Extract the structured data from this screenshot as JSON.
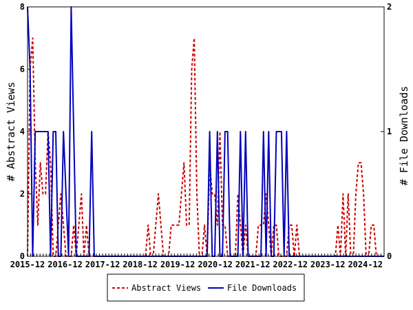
{
  "chart_data": {
    "type": "line",
    "xlabels": [
      "2015-12",
      "2016-12",
      "2017-12",
      "2018-12",
      "2019-12",
      "2020-12",
      "2021-12",
      "2022-12",
      "2023-12",
      "2024-12"
    ],
    "left_axis": {
      "label": "# Abstract Views",
      "ylim": [
        0,
        8
      ],
      "ticks": [
        "0",
        "2",
        "4",
        "6",
        "8"
      ]
    },
    "right_axis": {
      "label": "# File Downloads",
      "ylim": [
        0,
        2
      ],
      "ticks": [
        "0",
        "1",
        "2"
      ]
    },
    "x_range": [
      0,
      114
    ],
    "series": [
      {
        "name": "Abstract Views",
        "axis": "left",
        "color": "#cc0000",
        "dash": true,
        "values": [
          0,
          6,
          7,
          3,
          1,
          3,
          2,
          2,
          4,
          3,
          0,
          0,
          1,
          2,
          1,
          0,
          0,
          0,
          1,
          0,
          1,
          2,
          0,
          1,
          0,
          0,
          0,
          0,
          0,
          0,
          0,
          0,
          0,
          0,
          0,
          0,
          0,
          0,
          0,
          0,
          0,
          0,
          0,
          0,
          0,
          0,
          0,
          1,
          0,
          0,
          1,
          2,
          1,
          0,
          0,
          0,
          1,
          1,
          1,
          1,
          2,
          3,
          1,
          1,
          6,
          7,
          2,
          0,
          0,
          1,
          0,
          3,
          2,
          2,
          1,
          4,
          1,
          1,
          0,
          0,
          0,
          0,
          2,
          1,
          0,
          1,
          0,
          0,
          0,
          0,
          1,
          1,
          1,
          2,
          1,
          0,
          1,
          1,
          0,
          0,
          0,
          0,
          1,
          1,
          0,
          1,
          0,
          0,
          0,
          0,
          0,
          0,
          0,
          0,
          0,
          0,
          0,
          0,
          0,
          0,
          0,
          1,
          0,
          2,
          0,
          2,
          0,
          0,
          2,
          3,
          3,
          2,
          0,
          0,
          1,
          1,
          0,
          0,
          0,
          0
        ]
      },
      {
        "name": "File Downloads",
        "axis": "right",
        "color": "#0000bb",
        "dash": false,
        "values": [
          2,
          1.5,
          0,
          1,
          1,
          1,
          1,
          1,
          1,
          0,
          1,
          1,
          0,
          0,
          1,
          0.5,
          0,
          2,
          1,
          0,
          0,
          0,
          0,
          0,
          0,
          1,
          0,
          0,
          0,
          0,
          0,
          0,
          0,
          0,
          0,
          0,
          0,
          0,
          0,
          0,
          0,
          0,
          0,
          0,
          0,
          0,
          0,
          0,
          0,
          0,
          0,
          0,
          0,
          0,
          0,
          0,
          0,
          0,
          0,
          0,
          0,
          0,
          0,
          0,
          0,
          0,
          0,
          0,
          0,
          0,
          0,
          1,
          0,
          0,
          1,
          0,
          0,
          1,
          1,
          0,
          0,
          0,
          0,
          1,
          0,
          1,
          0,
          0,
          0,
          0,
          0,
          0,
          1,
          0,
          1,
          0,
          0,
          1,
          1,
          1,
          0,
          1,
          0,
          0,
          0,
          0,
          0,
          0,
          0,
          0,
          0,
          0,
          0,
          0,
          0,
          0,
          0,
          0,
          0,
          0,
          0,
          0,
          0,
          0,
          0,
          0,
          0,
          0,
          0,
          0,
          0,
          0,
          0,
          0,
          0,
          0,
          0,
          0,
          0,
          0
        ]
      }
    ],
    "grid": false,
    "legend": "bottom-center"
  },
  "colors": {
    "views": "#cc0000",
    "downloads": "#0000bb",
    "axis": "#000000"
  }
}
